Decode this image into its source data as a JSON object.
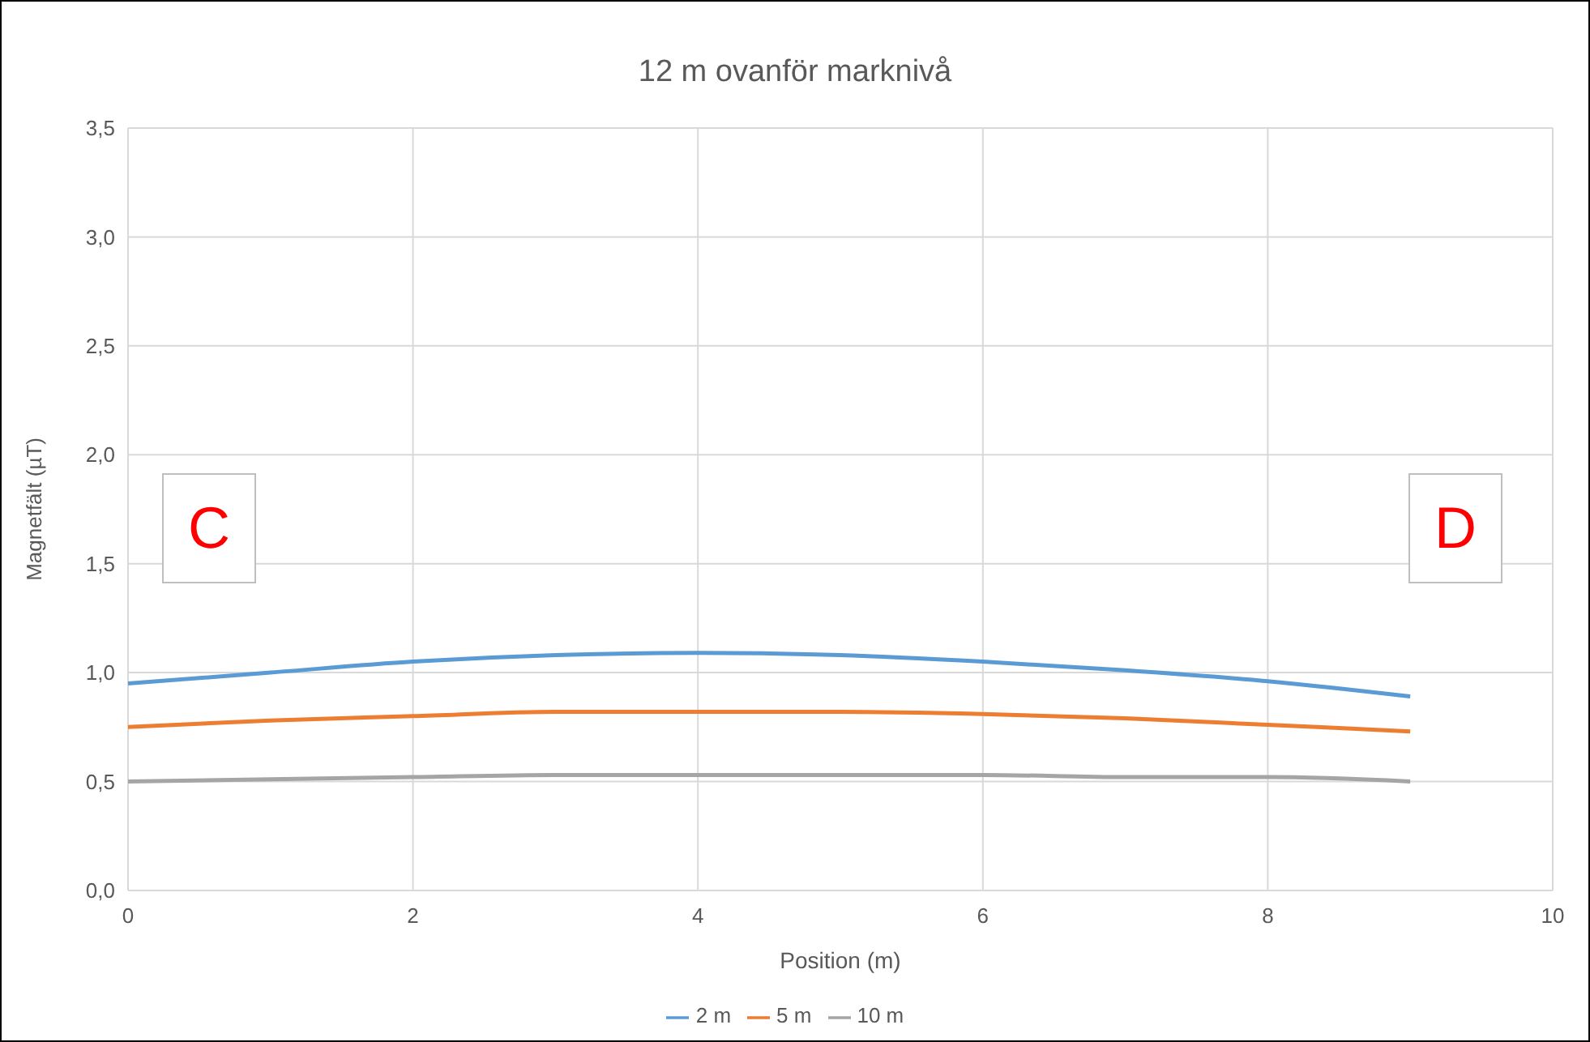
{
  "chart_data": {
    "type": "line",
    "title": "12 m ovanför marknivå",
    "xlabel": "Position (m)",
    "ylabel": "Magnetfält (µT)",
    "x": [
      0,
      1,
      2,
      3,
      4,
      5,
      6,
      7,
      8,
      9
    ],
    "series": [
      {
        "name": "2 m",
        "color": "#5b9bd5",
        "values": [
          0.95,
          1.0,
          1.05,
          1.08,
          1.09,
          1.08,
          1.05,
          1.01,
          0.96,
          0.89
        ]
      },
      {
        "name": "5 m",
        "color": "#ed7d31",
        "values": [
          0.75,
          0.78,
          0.8,
          0.82,
          0.82,
          0.82,
          0.81,
          0.79,
          0.76,
          0.73
        ]
      },
      {
        "name": "10 m",
        "color": "#a5a5a5",
        "values": [
          0.5,
          0.51,
          0.52,
          0.53,
          0.53,
          0.53,
          0.53,
          0.52,
          0.52,
          0.5
        ]
      }
    ],
    "xlim": [
      0,
      10
    ],
    "xticks": [
      0,
      2,
      4,
      6,
      8,
      10
    ],
    "ylim": [
      0,
      3.5
    ],
    "yticks": [
      {
        "value": 0,
        "label": "0,0"
      },
      {
        "value": 0.5,
        "label": "0,5"
      },
      {
        "value": 1,
        "label": "1,0"
      },
      {
        "value": 1.5,
        "label": "1,5"
      },
      {
        "value": 2,
        "label": "2,0"
      },
      {
        "value": 2.5,
        "label": "2,5"
      },
      {
        "value": 3,
        "label": "3,0"
      },
      {
        "value": 3.5,
        "label": "3,5"
      }
    ],
    "grid": true,
    "legend": "bottom",
    "marker": "none",
    "line_style": "solid",
    "annotations": [
      "C",
      "D"
    ]
  }
}
